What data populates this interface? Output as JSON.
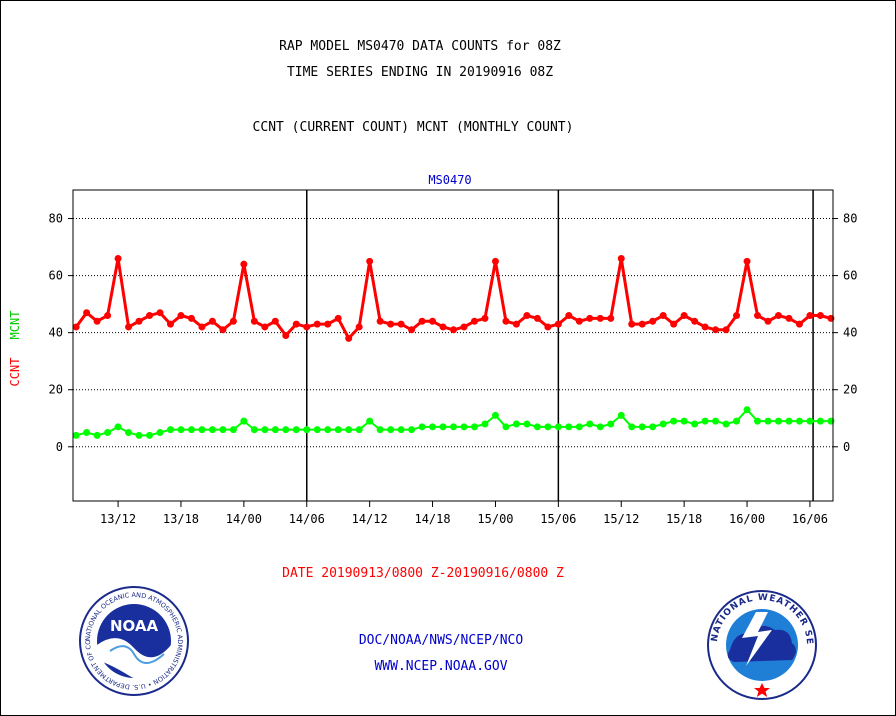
{
  "header": {
    "line1": "RAP MODEL MS0470 DATA COUNTS for 08Z",
    "line2": "TIME SERIES ENDING IN 20190916 08Z",
    "line3": "CCNT (CURRENT COUNT) MCNT (MONTHLY COUNT)"
  },
  "footer": {
    "date_range": "DATE 20190913/0800 Z-20190916/0800 Z",
    "org": "DOC/NOAA/NWS/NCEP/NCO",
    "url": "WWW.NCEP.NOAA.GOV"
  },
  "logos": {
    "noaa_text": "NOAA",
    "noaa_ring": "NATIONAL OCEANIC AND ATMOSPHERIC ADMINISTRATION • U.S. DEPARTMENT OF COMMERCE •",
    "nws_ring": "NATIONAL WEATHER SERVICE"
  },
  "chart_data": {
    "type": "line",
    "title": "MS0470",
    "ylabel_left": "CCNT",
    "ylabel_right": "MCNT",
    "ylim": [
      -19,
      90
    ],
    "yticks": [
      0,
      20,
      40,
      60,
      80
    ],
    "grid": true,
    "x_unit": "hours from 20190913/0800 Z",
    "xlim": [
      -0.3,
      72.2
    ],
    "xticks": [
      {
        "x": 4,
        "label": "13/12"
      },
      {
        "x": 10,
        "label": "13/18"
      },
      {
        "x": 16,
        "label": "14/00"
      },
      {
        "x": 22,
        "label": "14/06"
      },
      {
        "x": 28,
        "label": "14/12"
      },
      {
        "x": 34,
        "label": "14/18"
      },
      {
        "x": 40,
        "label": "15/00"
      },
      {
        "x": 46,
        "label": "15/06"
      },
      {
        "x": 52,
        "label": "15/12"
      },
      {
        "x": 58,
        "label": "15/18"
      },
      {
        "x": 64,
        "label": "16/00"
      },
      {
        "x": 70,
        "label": "16/06"
      }
    ],
    "day_lines": [
      22,
      46,
      70.3
    ],
    "series": [
      {
        "name": "CCNT",
        "color": "#ff0000",
        "values": [
          42,
          47,
          44,
          46,
          66,
          42,
          44,
          46,
          47,
          43,
          46,
          45,
          42,
          44,
          41,
          44,
          64,
          44,
          42,
          44,
          39,
          43,
          42,
          43,
          43,
          45,
          38,
          42,
          65,
          44,
          43,
          43,
          41,
          44,
          44,
          42,
          41,
          42,
          44,
          45,
          65,
          44,
          43,
          46,
          45,
          42,
          43,
          46,
          44,
          45,
          45,
          45,
          66,
          43,
          43,
          44,
          46,
          43,
          46,
          44,
          42,
          41,
          41,
          46,
          65,
          46,
          44,
          46,
          45,
          43,
          46,
          46,
          45
        ]
      },
      {
        "name": "MCNT",
        "color": "#00ff00",
        "values": [
          4,
          5,
          4,
          5,
          7,
          5,
          4,
          4,
          5,
          6,
          6,
          6,
          6,
          6,
          6,
          6,
          9,
          6,
          6,
          6,
          6,
          6,
          6,
          6,
          6,
          6,
          6,
          6,
          9,
          6,
          6,
          6,
          6,
          7,
          7,
          7,
          7,
          7,
          7,
          8,
          11,
          7,
          8,
          8,
          7,
          7,
          7,
          7,
          7,
          8,
          7,
          8,
          11,
          7,
          7,
          7,
          8,
          9,
          9,
          8,
          9,
          9,
          8,
          9,
          13,
          9,
          9,
          9,
          9,
          9,
          9,
          9,
          9
        ]
      }
    ]
  }
}
